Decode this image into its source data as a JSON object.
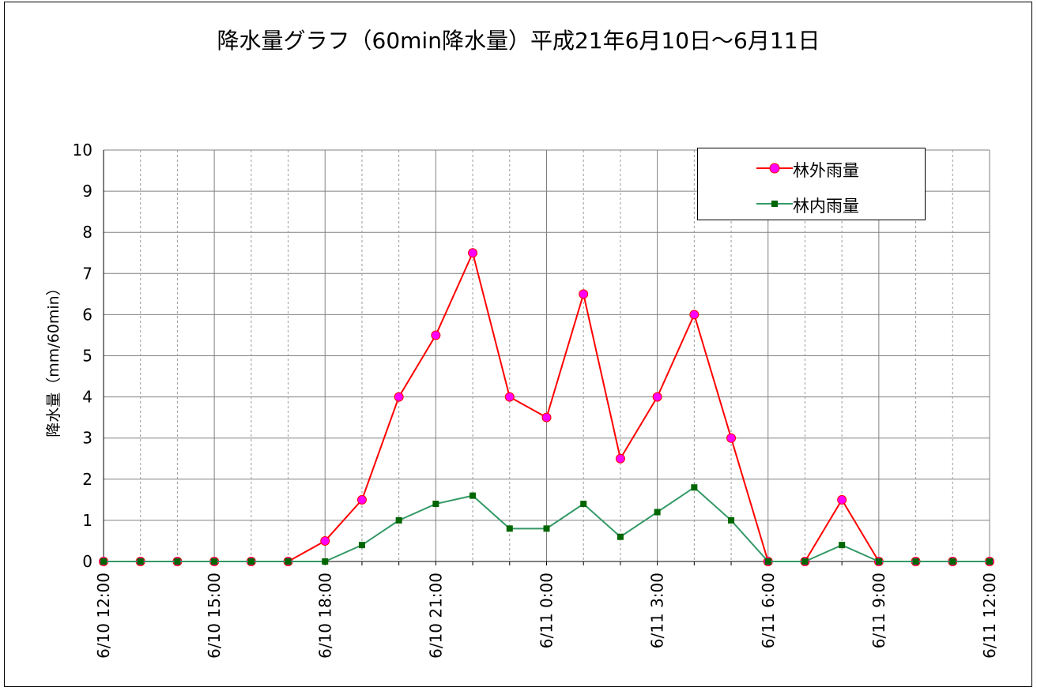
{
  "chart_data": {
    "type": "line",
    "title": "降水量グラフ（60min降水量）平成21年6月10日～6月11日",
    "ylabel": "降水量（mm/60min）",
    "xlabel": "",
    "ylim": [
      0,
      10
    ],
    "yticks": [
      "0",
      "1",
      "2",
      "3",
      "4",
      "5",
      "6",
      "7",
      "8",
      "9",
      "10"
    ],
    "x": [
      "6/10 12:00",
      "6/10 13:00",
      "6/10 14:00",
      "6/10 15:00",
      "6/10 16:00",
      "6/10 17:00",
      "6/10 18:00",
      "6/10 19:00",
      "6/10 20:00",
      "6/10 21:00",
      "6/10 22:00",
      "6/10 23:00",
      "6/11 0:00",
      "6/11 1:00",
      "6/11 2:00",
      "6/11 3:00",
      "6/11 4:00",
      "6/11 5:00",
      "6/11 6:00",
      "6/11 7:00",
      "6/11 8:00",
      "6/11 9:00",
      "6/11 10:00",
      "6/11 11:00",
      "6/11 12:00"
    ],
    "xtick_labels": [
      "6/10 12:00",
      "6/10 15:00",
      "6/10 18:00",
      "6/10 21:00",
      "6/11 0:00",
      "6/11 3:00",
      "6/11 6:00",
      "6/11 9:00",
      "6/11 12:00"
    ],
    "grid": true,
    "legend_position": "top-right",
    "series": [
      {
        "name": "林外雨量",
        "color": "#ff0000",
        "marker_color": "#ff00ff",
        "marker": "circle",
        "values": [
          0,
          0,
          0,
          0,
          0,
          0,
          0.5,
          1.5,
          4,
          5.5,
          7.5,
          4,
          3.5,
          6.5,
          2.5,
          4,
          6,
          3,
          0,
          0,
          1.5,
          0,
          0,
          0,
          0
        ]
      },
      {
        "name": "林内雨量",
        "color": "#339966",
        "marker_color": "#006600",
        "marker": "square",
        "values": [
          0,
          0,
          0,
          0,
          0,
          0,
          0,
          0.4,
          1,
          1.4,
          1.6,
          0.8,
          0.8,
          1.4,
          0.6,
          1.2,
          1.8,
          1,
          0,
          0,
          0.4,
          0,
          0,
          0,
          0
        ]
      }
    ]
  }
}
